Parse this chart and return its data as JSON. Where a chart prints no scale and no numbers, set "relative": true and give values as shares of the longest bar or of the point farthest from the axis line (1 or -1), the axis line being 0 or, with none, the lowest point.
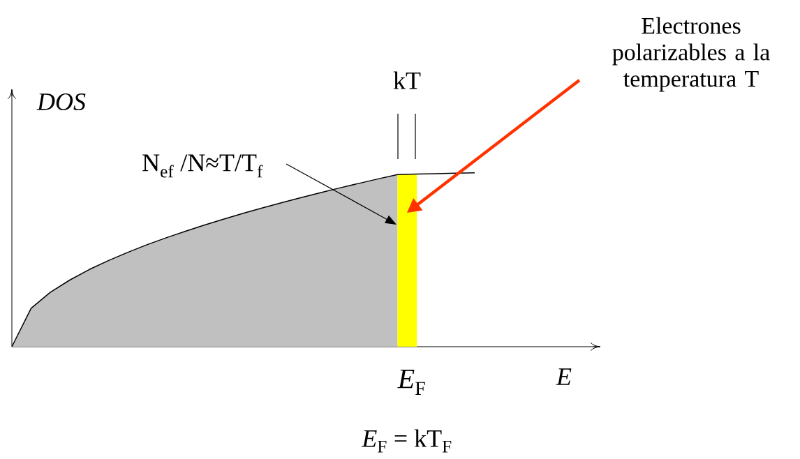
{
  "chart_data": {
    "type": "area",
    "relative": true,
    "xlabel": "*E*",
    "ylabel": "*DOS*",
    "categories": [
      null,
      null,
      null,
      null,
      null,
      null,
      null,
      null,
      null,
      null,
      null,
      null,
      null,
      null,
      null,
      null,
      null,
      null,
      null,
      null,
      null,
      null,
      null,
      null,
      null
    ],
    "series": [
      {
        "color": "#c0c0c0",
        "values": [
          0,
          0.221,
          0.313,
          0.383,
          0.443,
          0.495,
          0.542,
          0.586,
          0.626,
          0.664,
          0.7,
          0.734,
          0.767,
          0.798,
          0.828,
          0.857,
          0.885,
          0.913,
          0.939,
          0.965,
          0.99,
          null,
          null,
          null,
          null
        ]
      },
      {
        "color": "#ffff00",
        "values": [
          null,
          null,
          null,
          null,
          null,
          null,
          null,
          null,
          null,
          null,
          null,
          null,
          null,
          null,
          null,
          null,
          null,
          null,
          null,
          null,
          0.99,
          0.99,
          null,
          null,
          null
        ]
      },
      {
        "type": "line",
        "color": "#000000",
        "values": [
          0,
          0.221,
          0.313,
          0.383,
          0.443,
          0.495,
          0.542,
          0.586,
          0.626,
          0.664,
          0.7,
          0.734,
          0.767,
          0.798,
          0.828,
          0.857,
          0.885,
          0.913,
          0.939,
          0.965,
          0.99,
          0.993,
          0.995,
          0.998,
          1.0
        ]
      }
    ],
    "annotations": [
      "N$_{ef}$ /N≈T/T$_{f}$",
      "Electrones polarizables a la temperatura T",
      "kT",
      "*E*$_{F}$ = kT$_{F}$",
      "*E*$_{F}$"
    ]
  }
}
